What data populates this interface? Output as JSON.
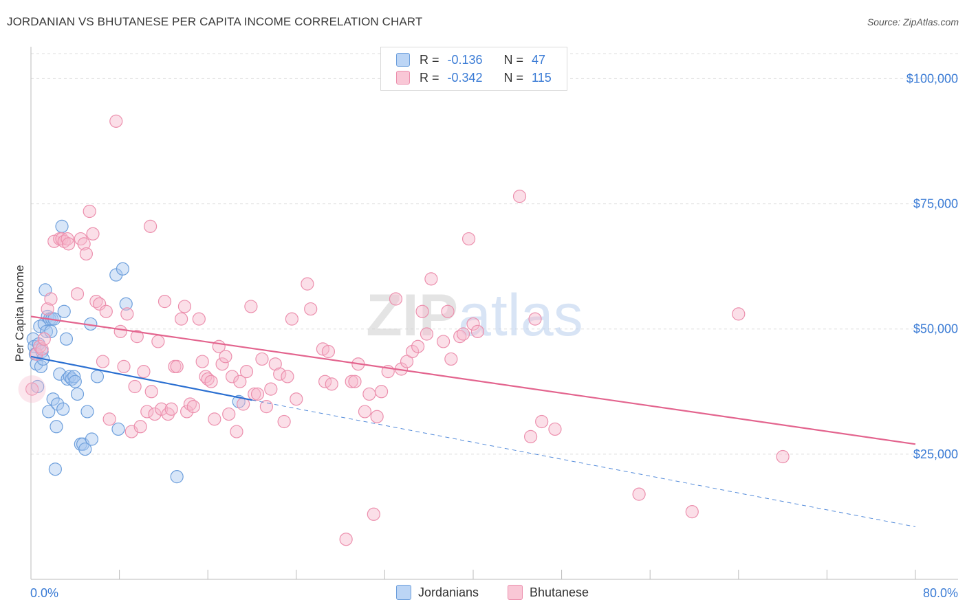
{
  "title": "JORDANIAN VS BHUTANESE PER CAPITA INCOME CORRELATION CHART",
  "source": "Source: ZipAtlas.com",
  "watermark": "ZIPatlas",
  "legend": {
    "rows": [
      {
        "r_label": "R =",
        "r_value": "-0.136",
        "n_label": "N =",
        "n_value": "47"
      },
      {
        "r_label": "R =",
        "r_value": "-0.342",
        "n_label": "N =",
        "n_value": "115"
      }
    ]
  },
  "bottom_legend": {
    "jordanians": "Jordanians",
    "bhutanese": "Bhutanese"
  },
  "colors": {
    "jordanians_fill": "#a9c8ef",
    "jordanians_stroke": "#6d9fdc",
    "jordanians_line": "#2a6fd1",
    "bhutanese_fill": "#f7b8cc",
    "bhutanese_stroke": "#ec8fad",
    "bhutanese_line": "#e3648e",
    "axis_label": "#3a7bd5",
    "grid": "#dddddd"
  },
  "chart_data": {
    "type": "scatter",
    "title": "JORDANIAN VS BHUTANESE PER CAPITA INCOME CORRELATION CHART",
    "xlabel": "",
    "ylabel": "Per Capita Income",
    "xlim": [
      0,
      80
    ],
    "ylim": [
      0,
      105000
    ],
    "x_tick_labels": [
      "0.0%",
      "80.0%"
    ],
    "y_ticks": [
      25000,
      50000,
      75000,
      100000
    ],
    "y_tick_labels": [
      "$25,000",
      "$50,000",
      "$75,000",
      "$100,000"
    ],
    "grid": true,
    "legend_position": "top-center",
    "series": [
      {
        "name": "Jordanians",
        "r": -0.136,
        "n": 47,
        "trend": {
          "x0": 0,
          "y0": 44500,
          "x1": 20,
          "y1": 35800,
          "extended_to_x": 80,
          "extended_y1": 10500
        },
        "points": [
          [
            0.2,
            48000
          ],
          [
            0.3,
            46500
          ],
          [
            0.4,
            45000
          ],
          [
            0.5,
            43000
          ],
          [
            0.6,
            38500
          ],
          [
            0.7,
            47000
          ],
          [
            0.8,
            50500
          ],
          [
            0.9,
            42500
          ],
          [
            1.0,
            45500
          ],
          [
            1.1,
            44000
          ],
          [
            1.2,
            51000
          ],
          [
            1.3,
            57800
          ],
          [
            1.4,
            49500
          ],
          [
            1.5,
            52500
          ],
          [
            1.6,
            33500
          ],
          [
            1.7,
            52000
          ],
          [
            1.8,
            49500
          ],
          [
            1.9,
            52000
          ],
          [
            2.0,
            36000
          ],
          [
            2.1,
            52000
          ],
          [
            2.2,
            22000
          ],
          [
            2.3,
            30500
          ],
          [
            2.4,
            35000
          ],
          [
            2.6,
            41000
          ],
          [
            2.8,
            70500
          ],
          [
            2.9,
            34000
          ],
          [
            3.2,
            48000
          ],
          [
            3.3,
            40000
          ],
          [
            3.5,
            40500
          ],
          [
            3.7,
            40000
          ],
          [
            3.9,
            40500
          ],
          [
            4.0,
            39500
          ],
          [
            4.2,
            37000
          ],
          [
            4.5,
            27000
          ],
          [
            4.7,
            27000
          ],
          [
            4.9,
            26000
          ],
          [
            5.1,
            33500
          ],
          [
            5.4,
            51000
          ],
          [
            5.5,
            28000
          ],
          [
            6.0,
            40500
          ],
          [
            7.7,
            60800
          ],
          [
            7.9,
            30000
          ],
          [
            8.3,
            62000
          ],
          [
            8.6,
            55000
          ],
          [
            13.2,
            20500
          ],
          [
            18.8,
            35500
          ],
          [
            3.0,
            53500
          ]
        ]
      },
      {
        "name": "Bhutanese",
        "r": -0.342,
        "n": 115,
        "trend": {
          "x0": 0,
          "y0": 52500,
          "x1": 80,
          "y1": 27000
        },
        "points": [
          [
            0.1,
            38000
          ],
          [
            0.5,
            45000
          ],
          [
            0.8,
            46500
          ],
          [
            1.0,
            46000
          ],
          [
            1.2,
            48000
          ],
          [
            1.5,
            54000
          ],
          [
            1.8,
            56000
          ],
          [
            2.1,
            67500
          ],
          [
            2.6,
            68000
          ],
          [
            2.8,
            68000
          ],
          [
            3.0,
            67500
          ],
          [
            3.3,
            68000
          ],
          [
            3.4,
            67000
          ],
          [
            4.2,
            57000
          ],
          [
            4.5,
            68000
          ],
          [
            4.8,
            67000
          ],
          [
            5.0,
            65000
          ],
          [
            5.3,
            73500
          ],
          [
            5.6,
            69000
          ],
          [
            5.9,
            55500
          ],
          [
            6.2,
            55000
          ],
          [
            6.5,
            43500
          ],
          [
            6.8,
            53500
          ],
          [
            7.1,
            32000
          ],
          [
            7.7,
            91500
          ],
          [
            8.1,
            49500
          ],
          [
            8.4,
            42500
          ],
          [
            8.7,
            53000
          ],
          [
            9.1,
            29500
          ],
          [
            9.4,
            38500
          ],
          [
            9.6,
            48500
          ],
          [
            9.9,
            30500
          ],
          [
            10.2,
            41500
          ],
          [
            10.5,
            33500
          ],
          [
            10.8,
            70500
          ],
          [
            10.9,
            37500
          ],
          [
            11.2,
            33000
          ],
          [
            11.5,
            47500
          ],
          [
            11.8,
            34000
          ],
          [
            12.1,
            55500
          ],
          [
            12.4,
            33000
          ],
          [
            12.7,
            34000
          ],
          [
            13.0,
            42500
          ],
          [
            13.2,
            42500
          ],
          [
            13.6,
            52000
          ],
          [
            13.9,
            54500
          ],
          [
            14.1,
            33500
          ],
          [
            14.4,
            35000
          ],
          [
            14.7,
            34500
          ],
          [
            15.2,
            52000
          ],
          [
            15.5,
            43500
          ],
          [
            15.8,
            40500
          ],
          [
            16.0,
            40000
          ],
          [
            16.3,
            39500
          ],
          [
            16.6,
            32000
          ],
          [
            17.0,
            46500
          ],
          [
            17.3,
            43000
          ],
          [
            17.6,
            44500
          ],
          [
            17.9,
            33000
          ],
          [
            18.2,
            40500
          ],
          [
            18.6,
            29500
          ],
          [
            18.9,
            39500
          ],
          [
            19.2,
            35000
          ],
          [
            19.5,
            41500
          ],
          [
            19.9,
            54500
          ],
          [
            20.2,
            37000
          ],
          [
            20.5,
            37000
          ],
          [
            20.9,
            44000
          ],
          [
            21.3,
            34500
          ],
          [
            21.7,
            38000
          ],
          [
            22.1,
            43000
          ],
          [
            22.5,
            41000
          ],
          [
            22.9,
            31500
          ],
          [
            23.2,
            40500
          ],
          [
            23.6,
            52000
          ],
          [
            24.0,
            36000
          ],
          [
            25.0,
            59000
          ],
          [
            25.3,
            54000
          ],
          [
            26.4,
            46000
          ],
          [
            26.6,
            39500
          ],
          [
            26.9,
            45500
          ],
          [
            27.2,
            39000
          ],
          [
            28.5,
            8000
          ],
          [
            29.0,
            39500
          ],
          [
            29.3,
            39500
          ],
          [
            29.6,
            43000
          ],
          [
            30.2,
            33500
          ],
          [
            30.6,
            37000
          ],
          [
            31.0,
            13000
          ],
          [
            31.3,
            32500
          ],
          [
            31.7,
            37500
          ],
          [
            32.3,
            41500
          ],
          [
            33.0,
            56000
          ],
          [
            33.5,
            42000
          ],
          [
            34.0,
            43500
          ],
          [
            34.5,
            45500
          ],
          [
            35.0,
            46500
          ],
          [
            35.4,
            53500
          ],
          [
            35.8,
            49000
          ],
          [
            36.2,
            60000
          ],
          [
            37.3,
            47500
          ],
          [
            37.7,
            53500
          ],
          [
            38.0,
            44000
          ],
          [
            38.8,
            48500
          ],
          [
            39.1,
            49000
          ],
          [
            39.6,
            68000
          ],
          [
            40.0,
            51000
          ],
          [
            40.4,
            49500
          ],
          [
            44.2,
            76500
          ],
          [
            45.2,
            28500
          ],
          [
            45.6,
            52000
          ],
          [
            46.2,
            31500
          ],
          [
            47.4,
            30000
          ],
          [
            55.0,
            17000
          ],
          [
            59.8,
            13500
          ],
          [
            64.0,
            53000
          ],
          [
            68.0,
            24500
          ]
        ]
      }
    ]
  }
}
